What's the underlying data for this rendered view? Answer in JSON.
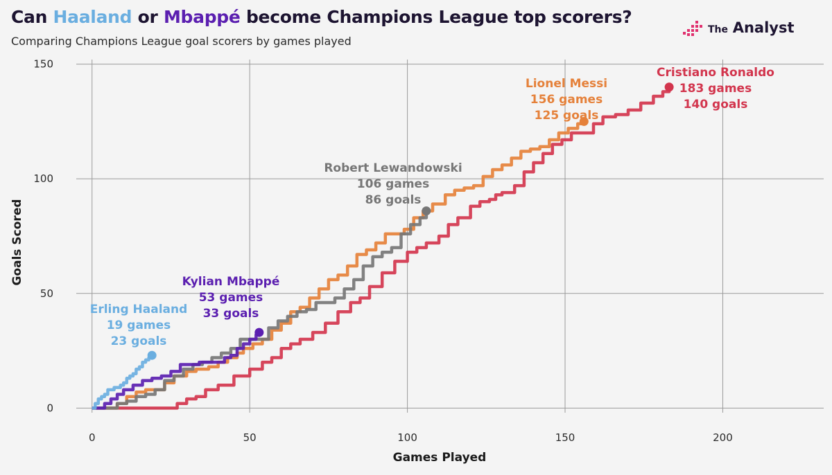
{
  "header": {
    "title_parts": {
      "prefix": "Can ",
      "name1": "Haaland",
      "mid": " or ",
      "name2": "Mbappé",
      "suffix": " become Champions League top scorers?"
    },
    "subtitle": "Comparing Champions League goal scorers by games played"
  },
  "logo": {
    "the": "The",
    "analyst": "Analyst"
  },
  "colors": {
    "background": "#f4f4f4",
    "grid": "#9a9a9a",
    "haaland": "#6aaee0",
    "mbappe": "#5b1fb0",
    "lewandowski": "#767676",
    "messi": "#e5813a",
    "ronaldo": "#d2354d",
    "logo_pink": "#e0306e"
  },
  "chart_data": {
    "type": "line",
    "title": "Can Haaland or Mbappé become Champions League top scorers?",
    "subtitle": "Comparing Champions League goal scorers by games played",
    "xlabel": "Games Played",
    "ylabel": "Goals Scored",
    "xlim": [
      -5,
      232
    ],
    "ylim": [
      -2,
      152
    ],
    "xticks": [
      0,
      50,
      100,
      150,
      200
    ],
    "yticks": [
      0,
      50,
      100,
      150
    ],
    "grid": true,
    "line_style": "step",
    "series": [
      {
        "name": "Cristiano Ronaldo",
        "key": "ronaldo",
        "color": "#d2354d",
        "label_lines": [
          "Cristiano Ronaldo",
          "183 games",
          "140 goals"
        ],
        "end": [
          183,
          140
        ],
        "points": [
          [
            0,
            0
          ],
          [
            26,
            0
          ],
          [
            27,
            2
          ],
          [
            30,
            4
          ],
          [
            33,
            5
          ],
          [
            36,
            8
          ],
          [
            40,
            10
          ],
          [
            45,
            14
          ],
          [
            50,
            17
          ],
          [
            52,
            17
          ],
          [
            54,
            20
          ],
          [
            57,
            22
          ],
          [
            60,
            26
          ],
          [
            63,
            28
          ],
          [
            66,
            30
          ],
          [
            70,
            33
          ],
          [
            74,
            37
          ],
          [
            78,
            42
          ],
          [
            82,
            46
          ],
          [
            85,
            48
          ],
          [
            88,
            53
          ],
          [
            92,
            59
          ],
          [
            96,
            64
          ],
          [
            100,
            68
          ],
          [
            103,
            70
          ],
          [
            106,
            72
          ],
          [
            110,
            75
          ],
          [
            113,
            80
          ],
          [
            116,
            83
          ],
          [
            120,
            88
          ],
          [
            123,
            90
          ],
          [
            126,
            91
          ],
          [
            128,
            93
          ],
          [
            130,
            94
          ],
          [
            134,
            97
          ],
          [
            137,
            103
          ],
          [
            140,
            107
          ],
          [
            143,
            111
          ],
          [
            146,
            115
          ],
          [
            149,
            117
          ],
          [
            152,
            120
          ],
          [
            156,
            120
          ],
          [
            159,
            124
          ],
          [
            162,
            127
          ],
          [
            166,
            128
          ],
          [
            170,
            130
          ],
          [
            174,
            133
          ],
          [
            178,
            136
          ],
          [
            181,
            138
          ],
          [
            183,
            140
          ]
        ]
      },
      {
        "name": "Lionel Messi",
        "key": "messi",
        "color": "#e5813a",
        "label_lines": [
          "Lionel Messi",
          "156 games",
          "125 goals"
        ],
        "end": [
          156,
          125
        ],
        "points": [
          [
            0,
            0
          ],
          [
            6,
            0
          ],
          [
            8,
            2
          ],
          [
            11,
            5
          ],
          [
            14,
            7
          ],
          [
            17,
            8
          ],
          [
            20,
            8
          ],
          [
            23,
            11
          ],
          [
            26,
            14
          ],
          [
            30,
            16
          ],
          [
            33,
            17
          ],
          [
            37,
            18
          ],
          [
            40,
            20
          ],
          [
            43,
            22
          ],
          [
            46,
            24
          ],
          [
            48,
            26
          ],
          [
            51,
            28
          ],
          [
            54,
            30
          ],
          [
            57,
            34
          ],
          [
            60,
            37
          ],
          [
            63,
            42
          ],
          [
            66,
            44
          ],
          [
            69,
            48
          ],
          [
            72,
            52
          ],
          [
            75,
            56
          ],
          [
            78,
            58
          ],
          [
            81,
            62
          ],
          [
            84,
            67
          ],
          [
            87,
            69
          ],
          [
            90,
            72
          ],
          [
            93,
            76
          ],
          [
            96,
            76
          ],
          [
            99,
            78
          ],
          [
            102,
            83
          ],
          [
            105,
            86
          ],
          [
            108,
            89
          ],
          [
            112,
            93
          ],
          [
            115,
            95
          ],
          [
            118,
            96
          ],
          [
            121,
            97
          ],
          [
            124,
            101
          ],
          [
            127,
            104
          ],
          [
            130,
            106
          ],
          [
            133,
            109
          ],
          [
            136,
            112
          ],
          [
            139,
            113
          ],
          [
            142,
            114
          ],
          [
            145,
            117
          ],
          [
            148,
            120
          ],
          [
            151,
            122
          ],
          [
            154,
            124
          ],
          [
            156,
            125
          ]
        ]
      },
      {
        "name": "Robert Lewandowski",
        "key": "lewandowski",
        "color": "#767676",
        "label_lines": [
          "Robert Lewandowski",
          "106 games",
          "86 goals"
        ],
        "end": [
          106,
          86
        ],
        "points": [
          [
            0,
            0
          ],
          [
            6,
            0
          ],
          [
            8,
            2
          ],
          [
            11,
            3
          ],
          [
            14,
            5
          ],
          [
            17,
            6
          ],
          [
            20,
            8
          ],
          [
            23,
            12
          ],
          [
            26,
            14
          ],
          [
            29,
            17
          ],
          [
            32,
            19
          ],
          [
            35,
            20
          ],
          [
            38,
            22
          ],
          [
            41,
            24
          ],
          [
            44,
            26
          ],
          [
            47,
            30
          ],
          [
            50,
            30
          ],
          [
            53,
            30
          ],
          [
            56,
            35
          ],
          [
            59,
            38
          ],
          [
            62,
            40
          ],
          [
            65,
            42
          ],
          [
            68,
            43
          ],
          [
            71,
            46
          ],
          [
            74,
            46
          ],
          [
            77,
            48
          ],
          [
            80,
            52
          ],
          [
            83,
            56
          ],
          [
            86,
            62
          ],
          [
            89,
            66
          ],
          [
            92,
            68
          ],
          [
            95,
            70
          ],
          [
            98,
            76
          ],
          [
            101,
            80
          ],
          [
            104,
            83
          ],
          [
            106,
            86
          ]
        ]
      },
      {
        "name": "Kylian Mbappé",
        "key": "mbappe",
        "color": "#5b1fb0",
        "label_lines": [
          "Kylian Mbappé",
          "53 games",
          "33 goals"
        ],
        "end": [
          53,
          33
        ],
        "points": [
          [
            0,
            0
          ],
          [
            2,
            0
          ],
          [
            4,
            2
          ],
          [
            6,
            4
          ],
          [
            8,
            6
          ],
          [
            10,
            8
          ],
          [
            13,
            10
          ],
          [
            16,
            12
          ],
          [
            19,
            13
          ],
          [
            22,
            14
          ],
          [
            25,
            16
          ],
          [
            28,
            19
          ],
          [
            31,
            19
          ],
          [
            34,
            20
          ],
          [
            37,
            20
          ],
          [
            40,
            20
          ],
          [
            42,
            22
          ],
          [
            44,
            23
          ],
          [
            46,
            26
          ],
          [
            48,
            28
          ],
          [
            50,
            30
          ],
          [
            52,
            32
          ],
          [
            53,
            33
          ]
        ]
      },
      {
        "name": "Erling Haaland",
        "key": "haaland",
        "color": "#6aaee0",
        "label_lines": [
          "Erling Haaland",
          "19 games",
          "23 goals"
        ],
        "end": [
          19,
          23
        ],
        "points": [
          [
            0,
            0
          ],
          [
            1,
            2
          ],
          [
            2,
            4
          ],
          [
            3,
            5
          ],
          [
            4,
            6
          ],
          [
            5,
            8
          ],
          [
            7,
            9
          ],
          [
            9,
            10
          ],
          [
            10,
            11
          ],
          [
            11,
            13
          ],
          [
            12,
            14
          ],
          [
            13,
            15
          ],
          [
            14,
            17
          ],
          [
            15,
            18
          ],
          [
            16,
            20
          ],
          [
            17,
            21
          ],
          [
            18,
            22
          ],
          [
            19,
            23
          ]
        ]
      }
    ]
  }
}
